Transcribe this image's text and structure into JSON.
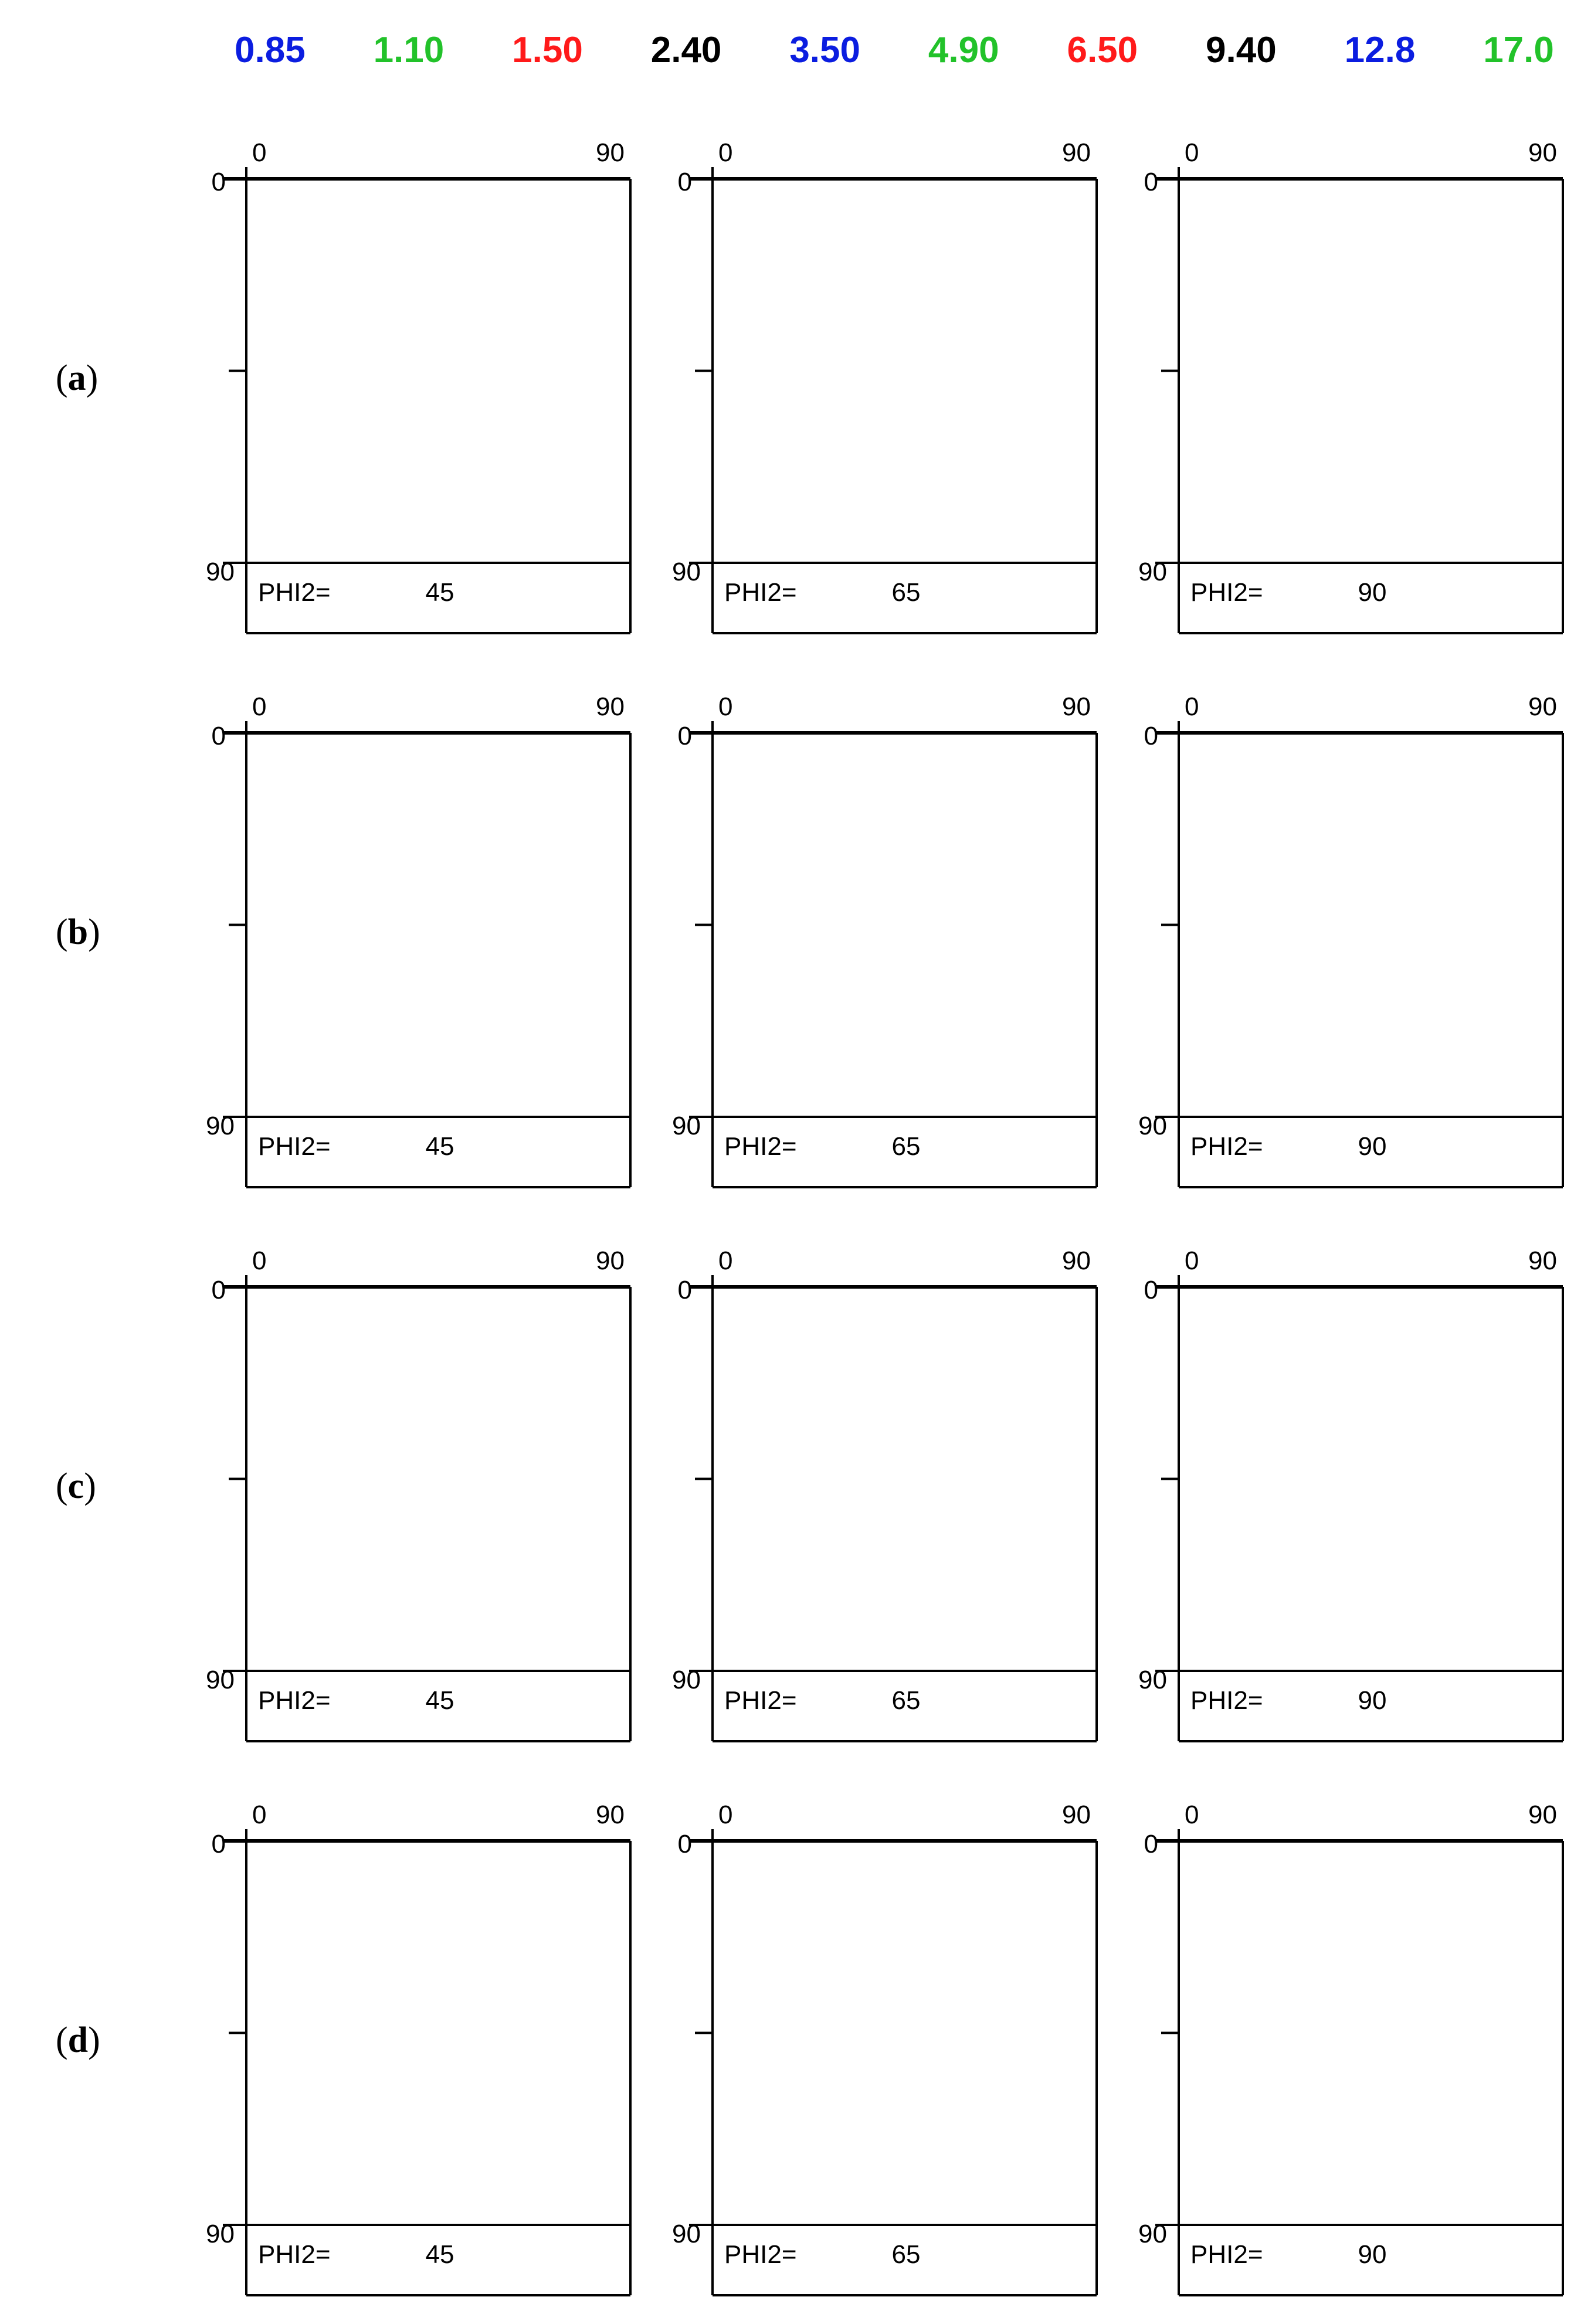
{
  "legend": {
    "levels": [
      {
        "label": "0.85",
        "color": "#0b1de0"
      },
      {
        "label": "1.10",
        "color": "#22c22a"
      },
      {
        "label": "1.50",
        "color": "#ff1a1a"
      },
      {
        "label": "2.40",
        "color": "#000000"
      },
      {
        "label": "3.50",
        "color": "#0b1de0"
      },
      {
        "label": "4.90",
        "color": "#22c22a"
      },
      {
        "label": "6.50",
        "color": "#ff1a1a"
      },
      {
        "label": "9.40",
        "color": "#000000"
      },
      {
        "label": "12.8",
        "color": "#0b1de0"
      },
      {
        "label": "17.0",
        "color": "#22c22a"
      }
    ]
  },
  "axis": {
    "x_min": "0",
    "x_max": "90",
    "y_min": "0",
    "y_max": "90"
  },
  "phi2_label": "PHI2=",
  "rows": [
    {
      "label": "(a)",
      "letter": "a"
    },
    {
      "label": "(b)",
      "letter": "b"
    },
    {
      "label": "(c)",
      "letter": "c"
    },
    {
      "label": "(d)",
      "letter": "d"
    }
  ],
  "columns": [
    {
      "phi2": "45"
    },
    {
      "phi2": "65"
    },
    {
      "phi2": "90"
    }
  ]
}
